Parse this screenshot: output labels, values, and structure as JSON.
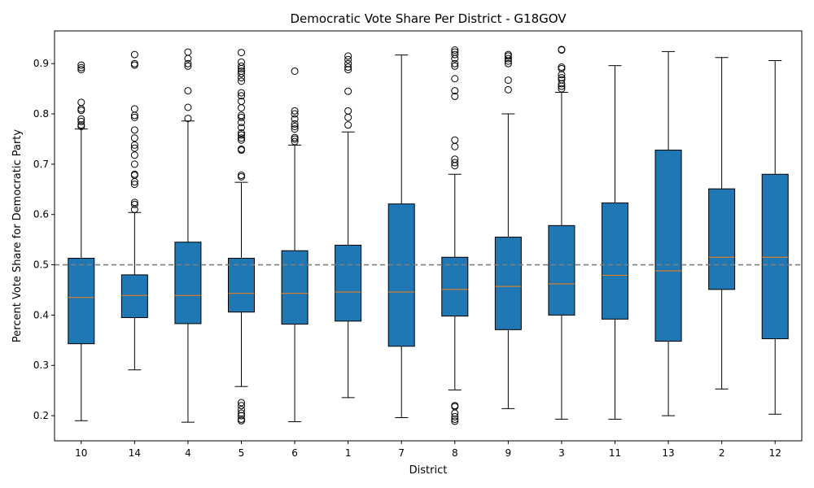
{
  "chart_data": {
    "type": "box",
    "title": "Democratic Vote Share Per District - G18GOV",
    "xlabel": "District",
    "ylabel": "Percent Vote Share for Democratic Party",
    "ylim": [
      0.15,
      0.965
    ],
    "yticks": [
      0.2,
      0.3,
      0.4,
      0.5,
      0.6,
      0.7,
      0.8,
      0.9
    ],
    "reference_line": {
      "y": 0.5,
      "style": "dashed",
      "color": "#808080"
    },
    "box_color": "#1f77b4",
    "median_color": "#ff7f0e",
    "grid": false,
    "legend": "none",
    "categories": [
      "10",
      "14",
      "4",
      "5",
      "6",
      "1",
      "7",
      "8",
      "9",
      "3",
      "11",
      "13",
      "2",
      "12"
    ],
    "boxes": [
      {
        "district": "10",
        "whislo": 0.19,
        "q1": 0.343,
        "med": 0.435,
        "q3": 0.513,
        "whishi": 0.77,
        "fliers": [
          0.775,
          0.778,
          0.785,
          0.79,
          0.807,
          0.81,
          0.823,
          0.888,
          0.892,
          0.897
        ]
      },
      {
        "district": "14",
        "whislo": 0.291,
        "q1": 0.395,
        "med": 0.439,
        "q3": 0.48,
        "whishi": 0.604,
        "fliers": [
          0.61,
          0.62,
          0.624,
          0.66,
          0.665,
          0.678,
          0.68,
          0.7,
          0.718,
          0.732,
          0.738,
          0.752,
          0.768,
          0.793,
          0.797,
          0.81,
          0.897,
          0.9,
          0.918
        ]
      },
      {
        "district": "4",
        "whislo": 0.187,
        "q1": 0.383,
        "med": 0.439,
        "q3": 0.545,
        "whishi": 0.786,
        "fliers": [
          0.791,
          0.813,
          0.846,
          0.895,
          0.9,
          0.91,
          0.923
        ]
      },
      {
        "district": "5",
        "whislo": 0.258,
        "q1": 0.406,
        "med": 0.443,
        "q3": 0.513,
        "whishi": 0.664,
        "fliers": [
          0.19,
          0.193,
          0.2,
          0.205,
          0.212,
          0.22,
          0.226,
          0.675,
          0.678,
          0.728,
          0.73,
          0.748,
          0.752,
          0.758,
          0.762,
          0.773,
          0.783,
          0.793,
          0.797,
          0.812,
          0.825,
          0.836,
          0.842,
          0.865,
          0.872,
          0.88,
          0.885,
          0.89,
          0.895,
          0.903,
          0.922
        ]
      },
      {
        "district": "6",
        "whislo": 0.188,
        "q1": 0.382,
        "med": 0.443,
        "q3": 0.528,
        "whishi": 0.738,
        "fliers": [
          0.745,
          0.75,
          0.753,
          0.77,
          0.775,
          0.78,
          0.79,
          0.8,
          0.806,
          0.885
        ]
      },
      {
        "district": "1",
        "whislo": 0.236,
        "q1": 0.388,
        "med": 0.446,
        "q3": 0.539,
        "whishi": 0.764,
        "fliers": [
          0.778,
          0.793,
          0.806,
          0.845,
          0.888,
          0.893,
          0.9,
          0.908,
          0.915
        ]
      },
      {
        "district": "7",
        "whislo": 0.196,
        "q1": 0.338,
        "med": 0.446,
        "q3": 0.621,
        "whishi": 0.917,
        "fliers": []
      },
      {
        "district": "8",
        "whislo": 0.251,
        "q1": 0.398,
        "med": 0.451,
        "q3": 0.515,
        "whishi": 0.68,
        "fliers": [
          0.189,
          0.193,
          0.198,
          0.205,
          0.218,
          0.22,
          0.697,
          0.703,
          0.71,
          0.735,
          0.748,
          0.835,
          0.846,
          0.87,
          0.895,
          0.9,
          0.91,
          0.918,
          0.923,
          0.927
        ]
      },
      {
        "district": "9",
        "whislo": 0.214,
        "q1": 0.371,
        "med": 0.457,
        "q3": 0.555,
        "whishi": 0.8,
        "fliers": [
          0.848,
          0.867,
          0.9,
          0.905,
          0.91,
          0.915,
          0.918
        ]
      },
      {
        "district": "3",
        "whislo": 0.193,
        "q1": 0.4,
        "med": 0.462,
        "q3": 0.578,
        "whishi": 0.843,
        "fliers": [
          0.85,
          0.855,
          0.86,
          0.868,
          0.872,
          0.878,
          0.89,
          0.893,
          0.927,
          0.928
        ]
      },
      {
        "district": "11",
        "whislo": 0.193,
        "q1": 0.392,
        "med": 0.479,
        "q3": 0.623,
        "whishi": 0.896,
        "fliers": []
      },
      {
        "district": "13",
        "whislo": 0.2,
        "q1": 0.348,
        "med": 0.488,
        "q3": 0.728,
        "whishi": 0.924,
        "fliers": []
      },
      {
        "district": "2",
        "whislo": 0.253,
        "q1": 0.451,
        "med": 0.515,
        "q3": 0.651,
        "whishi": 0.912,
        "fliers": []
      },
      {
        "district": "12",
        "whislo": 0.203,
        "q1": 0.353,
        "med": 0.515,
        "q3": 0.68,
        "whishi": 0.906,
        "fliers": []
      }
    ]
  }
}
